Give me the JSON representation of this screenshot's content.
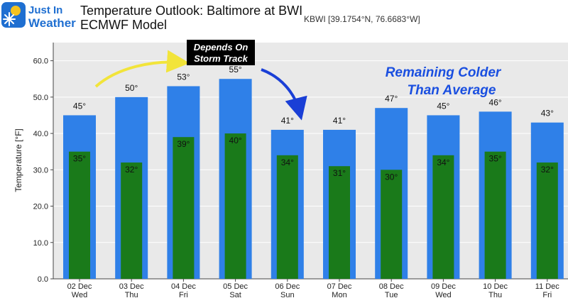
{
  "logo": {
    "line1": "Just In",
    "line2": "Weather",
    "icon": "snowflake-sun-icon"
  },
  "header": {
    "title_line1": "Temperature Outlook: Baltimore at BWI",
    "title_line2": "ECMWF Model",
    "station": "KBWI [39.1754°N, 76.6683°W]"
  },
  "annotations": {
    "callout_line1": "Depends On",
    "callout_line2": "Storm Track",
    "note_line1": "Remaining Colder",
    "note_line2": "Than Average"
  },
  "colors": {
    "high_bar": "#2f80e8",
    "low_bar": "#1a7a1a",
    "plot_bg": "#e9e9e9",
    "grid": "#ffffff",
    "callout_bg": "#000000",
    "yellow_arrow": "#f2e43a",
    "blue_arrow": "#1a3fd6",
    "note": "#1a4fe0"
  },
  "chart_data": {
    "type": "bar",
    "title": "Temperature Outlook: Baltimore at BWI",
    "subtitle": "ECMWF Model",
    "ylabel": "Temperature [°F]",
    "xlabel": "",
    "ylim": [
      0,
      65
    ],
    "yticks": [
      "0.0",
      "10.0",
      "20.0",
      "30.0",
      "40.0",
      "50.0",
      "60.0"
    ],
    "grid": true,
    "categories": [
      {
        "date": "02 Dec",
        "day": "Wed"
      },
      {
        "date": "03 Dec",
        "day": "Thu"
      },
      {
        "date": "04 Dec",
        "day": "Fri"
      },
      {
        "date": "05 Dec",
        "day": "Sat"
      },
      {
        "date": "06 Dec",
        "day": "Sun"
      },
      {
        "date": "07 Dec",
        "day": "Mon"
      },
      {
        "date": "08 Dec",
        "day": "Tue"
      },
      {
        "date": "09 Dec",
        "day": "Wed"
      },
      {
        "date": "10 Dec",
        "day": "Thu"
      },
      {
        "date": "11 Dec",
        "day": "Fri"
      }
    ],
    "series": [
      {
        "values": [
          45,
          50,
          53,
          55,
          41,
          41,
          47,
          45,
          46,
          43
        ],
        "labels": [
          "45°",
          "50°",
          "53°",
          "55°",
          "41°",
          "41°",
          "47°",
          "45°",
          "46°",
          "43°"
        ]
      },
      {
        "values": [
          35,
          32,
          39,
          40,
          34,
          31,
          30,
          34,
          35,
          32
        ],
        "labels": [
          "35°",
          "32°",
          "39°",
          "40°",
          "34°",
          "31°",
          "30°",
          "34°",
          "35°",
          "32°"
        ]
      }
    ]
  }
}
